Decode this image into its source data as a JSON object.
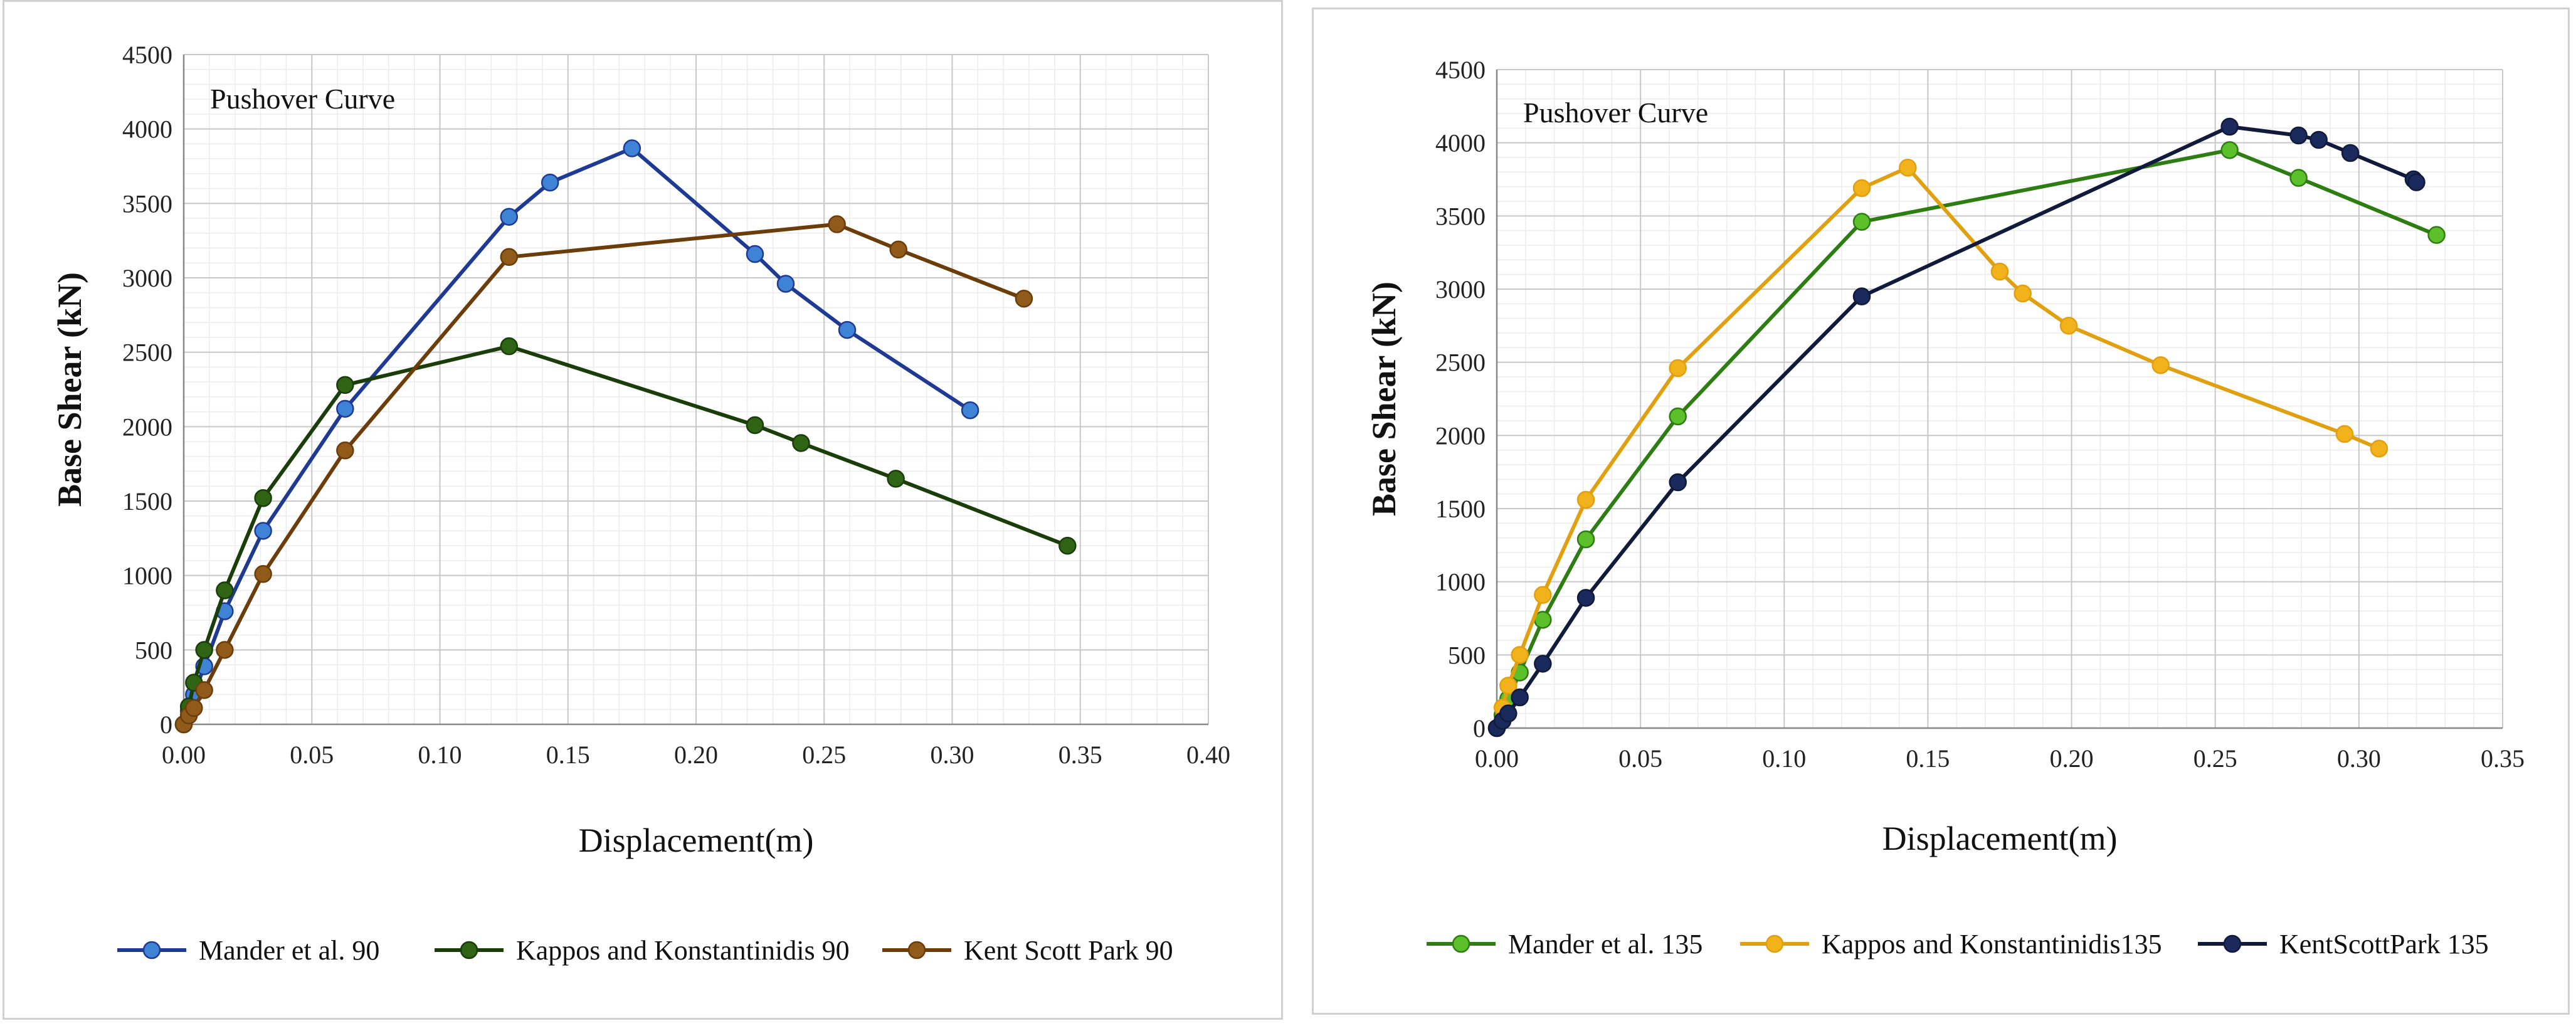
{
  "chart_data": [
    {
      "type": "line",
      "title": "Pushover Curve",
      "xlabel": "Displacement(m)",
      "ylabel": "Base Shear (kN)",
      "xlim": [
        0,
        0.4
      ],
      "ylim": [
        0,
        4500
      ],
      "x_ticks": [
        "0.00",
        "0.05",
        "0.10",
        "0.15",
        "0.20",
        "0.25",
        "0.30",
        "0.35",
        "0.40"
      ],
      "y_ticks": [
        "0",
        "500",
        "1000",
        "1500",
        "2000",
        "2500",
        "3000",
        "3500",
        "4000",
        "4500"
      ],
      "grid": true,
      "legend": "bottom",
      "series": [
        {
          "name": "Mander et al. 90",
          "line_color": "#1f3a93",
          "marker_color": "#3f83d6",
          "points": [
            [
              0,
              0
            ],
            [
              0.002,
              90
            ],
            [
              0.004,
              200
            ],
            [
              0.008,
              390
            ],
            [
              0.016,
              760
            ],
            [
              0.031,
              1300
            ],
            [
              0.063,
              2120
            ],
            [
              0.127,
              3410
            ],
            [
              0.143,
              3640
            ],
            [
              0.175,
              3870
            ],
            [
              0.223,
              3160
            ],
            [
              0.235,
              2960
            ],
            [
              0.259,
              2650
            ],
            [
              0.307,
              2110
            ]
          ]
        },
        {
          "name": "Kappos and Konstantinidis 90",
          "line_color": "#1a3d0a",
          "marker_color": "#2f6414",
          "points": [
            [
              0,
              0
            ],
            [
              0.002,
              120
            ],
            [
              0.004,
              280
            ],
            [
              0.008,
              500
            ],
            [
              0.016,
              900
            ],
            [
              0.031,
              1520
            ],
            [
              0.063,
              2280
            ],
            [
              0.127,
              2540
            ],
            [
              0.223,
              2010
            ],
            [
              0.241,
              1890
            ],
            [
              0.278,
              1650
            ],
            [
              0.345,
              1200
            ]
          ]
        },
        {
          "name": "Kent Scott Park 90",
          "line_color": "#6b3d0a",
          "marker_color": "#8f5a1a",
          "points": [
            [
              0,
              0
            ],
            [
              0.002,
              60
            ],
            [
              0.004,
              110
            ],
            [
              0.008,
              230
            ],
            [
              0.016,
              500
            ],
            [
              0.031,
              1010
            ],
            [
              0.063,
              1840
            ],
            [
              0.127,
              3140
            ],
            [
              0.255,
              3360
            ],
            [
              0.279,
              3190
            ],
            [
              0.328,
              2860
            ]
          ]
        }
      ]
    },
    {
      "type": "line",
      "title": "Pushover Curve",
      "xlabel": "Displacement(m)",
      "ylabel": "Base Shear (kN)",
      "xlim": [
        0,
        0.35
      ],
      "ylim": [
        0,
        4500
      ],
      "x_ticks": [
        "0.00",
        "0.05",
        "0.10",
        "0.15",
        "0.20",
        "0.25",
        "0.30",
        "0.35"
      ],
      "y_ticks": [
        "0",
        "500",
        "1000",
        "1500",
        "2000",
        "2500",
        "3000",
        "3500",
        "4000",
        "4500"
      ],
      "grid": true,
      "legend": "bottom",
      "series": [
        {
          "name": "Mander et al. 135",
          "line_color": "#2e7d12",
          "marker_color": "#5cc02a",
          "points": [
            [
              0,
              0
            ],
            [
              0.002,
              90
            ],
            [
              0.004,
              200
            ],
            [
              0.008,
              380
            ],
            [
              0.016,
              740
            ],
            [
              0.031,
              1290
            ],
            [
              0.063,
              2130
            ],
            [
              0.127,
              3460
            ],
            [
              0.255,
              3950
            ],
            [
              0.279,
              3760
            ],
            [
              0.327,
              3370
            ]
          ]
        },
        {
          "name": "Kappos and Konstantinidis135",
          "line_color": "#e0a010",
          "marker_color": "#f2b21c",
          "points": [
            [
              0,
              0
            ],
            [
              0.002,
              140
            ],
            [
              0.004,
              290
            ],
            [
              0.008,
              500
            ],
            [
              0.016,
              910
            ],
            [
              0.031,
              1560
            ],
            [
              0.063,
              2460
            ],
            [
              0.127,
              3690
            ],
            [
              0.143,
              3830
            ],
            [
              0.175,
              3120
            ],
            [
              0.183,
              2970
            ],
            [
              0.199,
              2750
            ],
            [
              0.231,
              2480
            ],
            [
              0.295,
              2010
            ],
            [
              0.307,
              1910
            ]
          ]
        },
        {
          "name": "KentScottPark 135",
          "line_color": "#101a3a",
          "marker_color": "#1a2a5c",
          "points": [
            [
              0,
              0
            ],
            [
              0.002,
              50
            ],
            [
              0.004,
              100
            ],
            [
              0.008,
              210
            ],
            [
              0.016,
              440
            ],
            [
              0.031,
              890
            ],
            [
              0.063,
              1680
            ],
            [
              0.127,
              2950
            ],
            [
              0.255,
              4110
            ],
            [
              0.279,
              4050
            ],
            [
              0.286,
              4020
            ],
            [
              0.297,
              3930
            ],
            [
              0.319,
              3750
            ],
            [
              0.32,
              3730
            ]
          ]
        }
      ]
    }
  ]
}
